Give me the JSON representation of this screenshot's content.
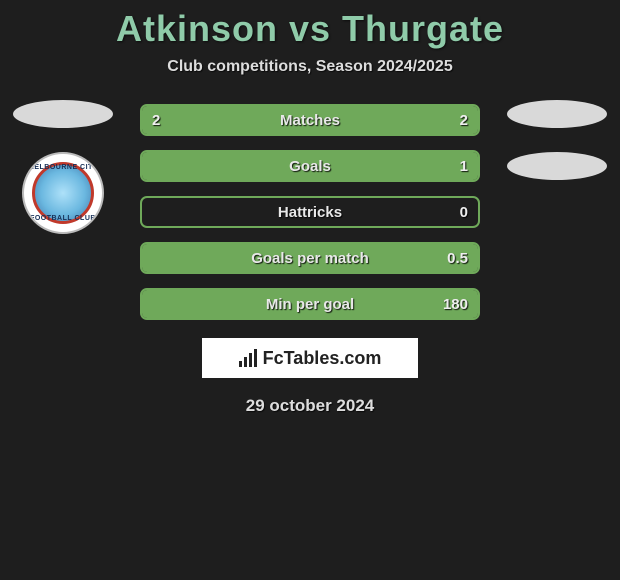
{
  "title": "Atkinson vs Thurgate",
  "subtitle": "Club competitions, Season 2024/2025",
  "date": "29 october 2024",
  "footer": "FcTables.com",
  "colors": {
    "border": "#6fa95a",
    "fill": "#6fa95a",
    "bg": "#1e1e1e"
  },
  "bars": [
    {
      "label": "Matches",
      "left": "2",
      "right": "2",
      "left_pct": 50,
      "right_pct": 50
    },
    {
      "label": "Goals",
      "left": "",
      "right": "1",
      "left_pct": 0,
      "right_pct": 100
    },
    {
      "label": "Hattricks",
      "left": "",
      "right": "0",
      "left_pct": 0,
      "right_pct": 0
    },
    {
      "label": "Goals per match",
      "left": "",
      "right": "0.5",
      "left_pct": 0,
      "right_pct": 100
    },
    {
      "label": "Min per goal",
      "left": "",
      "right": "180",
      "left_pct": 0,
      "right_pct": 100
    }
  ],
  "badge": {
    "top": "MELBOURNE CITY",
    "bottom": "FOOTBALL CLUB"
  }
}
